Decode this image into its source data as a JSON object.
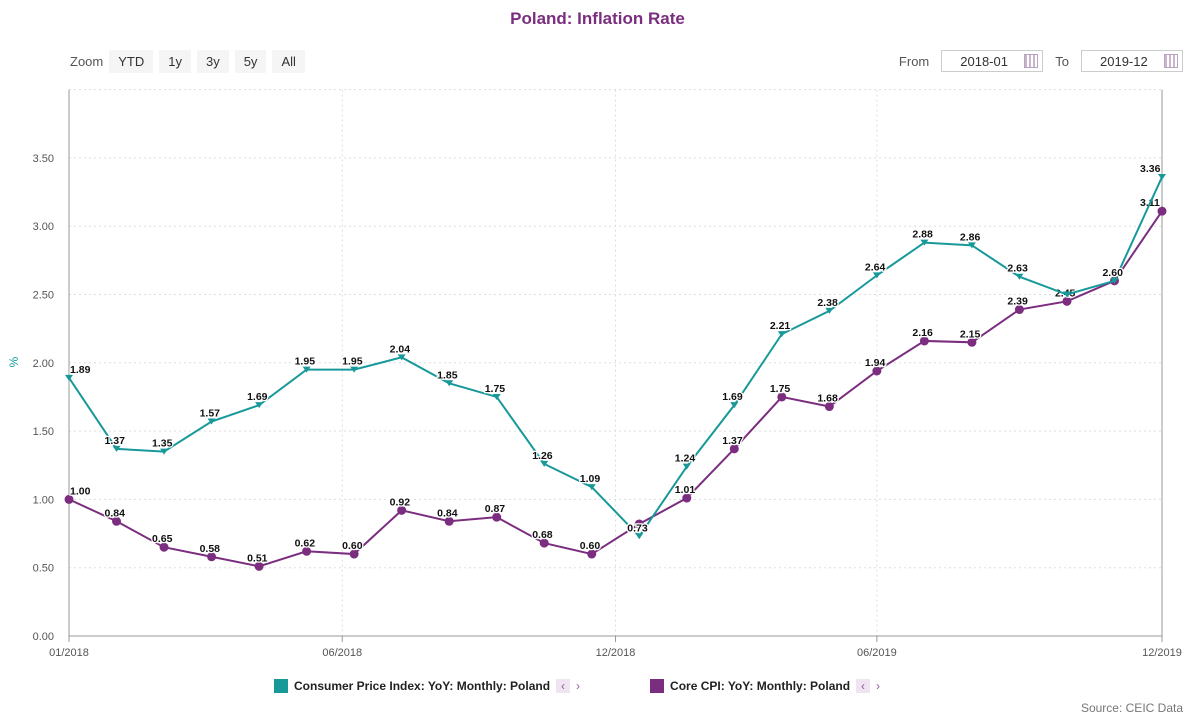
{
  "title": "Poland: Inflation Rate",
  "zoom": {
    "label": "Zoom",
    "buttons": [
      "YTD",
      "1y",
      "3y",
      "5y",
      "All"
    ]
  },
  "range": {
    "from_label": "From",
    "from": "2018-01",
    "to_label": "To",
    "to": "2019-12"
  },
  "source": "Source: CEIC Data",
  "colors": {
    "cpi": "#17999a",
    "core": "#7b2d7f",
    "title": "#7b2d7f"
  },
  "chart_data": {
    "type": "line",
    "title": "Poland: Inflation Rate",
    "ylabel": "%",
    "ylim": [
      0,
      4
    ],
    "yticks": [
      "0.00",
      "0.50",
      "1.00",
      "1.50",
      "2.00",
      "2.50",
      "3.00",
      "3.50"
    ],
    "xticks": [
      "01/2018",
      "06/2018",
      "12/2018",
      "06/2019",
      "12/2019"
    ],
    "x": [
      "2018-01",
      "2018-02",
      "2018-03",
      "2018-04",
      "2018-05",
      "2018-06",
      "2018-07",
      "2018-08",
      "2018-09",
      "2018-10",
      "2018-11",
      "2018-12",
      "2019-01",
      "2019-02",
      "2019-03",
      "2019-04",
      "2019-05",
      "2019-06",
      "2019-07",
      "2019-08",
      "2019-09",
      "2019-10",
      "2019-11",
      "2019-12"
    ],
    "series": [
      {
        "name": "Consumer Price Index: YoY: Monthly: Poland",
        "values": [
          1.89,
          1.37,
          1.35,
          1.57,
          1.69,
          1.95,
          1.95,
          2.04,
          1.85,
          1.75,
          1.26,
          1.09,
          0.73,
          1.24,
          1.69,
          2.21,
          2.38,
          2.64,
          2.88,
          2.86,
          2.63,
          2.5,
          2.6,
          3.36
        ],
        "hidden_labels": [
          21
        ]
      },
      {
        "name": "Core CPI: YoY: Monthly: Poland",
        "values": [
          1.0,
          0.84,
          0.65,
          0.58,
          0.51,
          0.62,
          0.6,
          0.92,
          0.84,
          0.87,
          0.68,
          0.6,
          0.82,
          1.01,
          1.37,
          1.75,
          1.68,
          1.94,
          2.16,
          2.15,
          2.39,
          2.45,
          2.6,
          3.11
        ],
        "hidden_labels": [
          12,
          22
        ]
      }
    ]
  }
}
